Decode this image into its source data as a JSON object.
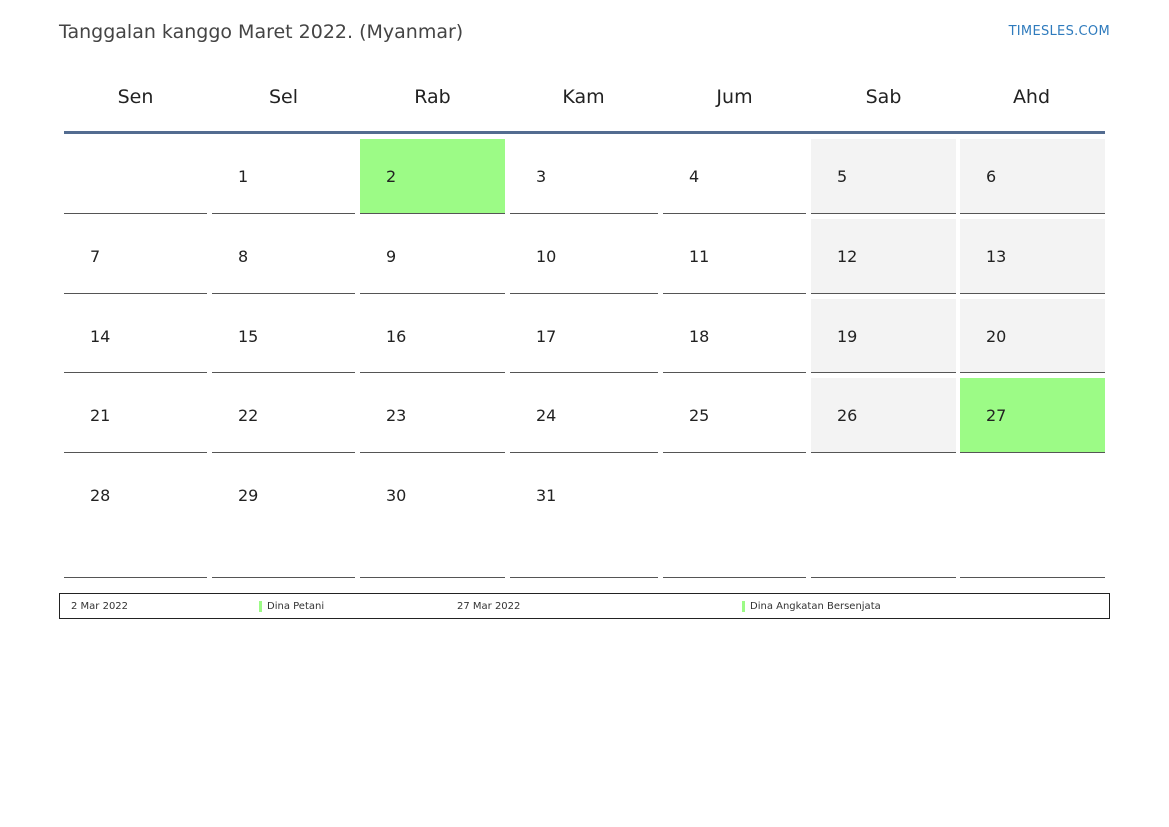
{
  "page": {
    "title": "Tanggalan kanggo Maret 2022. (Myanmar)",
    "site": "TIMESLES.COM"
  },
  "colors": {
    "holiday": "#9cfb86",
    "weekend": "#f3f3f3",
    "header_rule": "#536c90",
    "link": "#2f7bbd"
  },
  "weekdays": [
    "Sen",
    "Sel",
    "Rab",
    "Kam",
    "Jum",
    "Sab",
    "Ahd"
  ],
  "weeks": [
    [
      null,
      1,
      2,
      3,
      4,
      5,
      6
    ],
    [
      7,
      8,
      9,
      10,
      11,
      12,
      13
    ],
    [
      14,
      15,
      16,
      17,
      18,
      19,
      20
    ],
    [
      21,
      22,
      23,
      24,
      25,
      26,
      27
    ],
    [
      28,
      29,
      30,
      31,
      null,
      null,
      null
    ]
  ],
  "holiday_days": [
    2,
    27
  ],
  "holidays": [
    {
      "date": "2 Mar 2022",
      "name": "Dina Petani"
    },
    {
      "date": "27 Mar 2022",
      "name": "Dina Angkatan Bersenjata"
    }
  ]
}
